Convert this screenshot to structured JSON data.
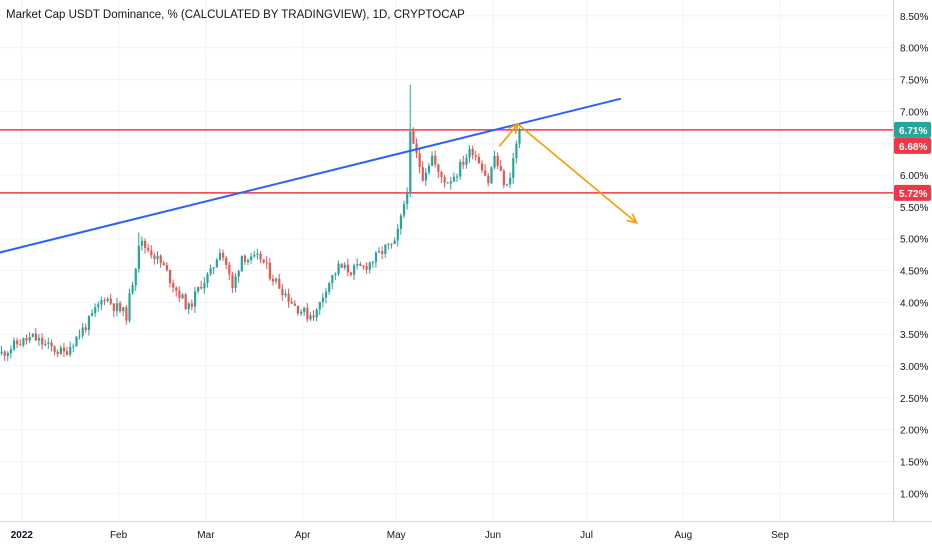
{
  "chart_data": {
    "type": "candlestick",
    "title": "Market Cap USDT Dominance, % (CALCULATED BY TRADINGVIEW), 1D, CRYPTOCAP",
    "ylim": [
      0.55,
      8.75
    ],
    "y_ticks": [
      "8.50%",
      "8.00%",
      "7.50%",
      "7.00%",
      "6.50%",
      "6.00%",
      "5.50%",
      "5.00%",
      "4.50%",
      "4.00%",
      "3.50%",
      "3.00%",
      "2.50%",
      "2.00%",
      "1.50%",
      "1.00%"
    ],
    "x_ticks": [
      {
        "label": "2022",
        "bold": true,
        "day": 7
      },
      {
        "label": "Feb",
        "bold": false,
        "day": 38
      },
      {
        "label": "Mar",
        "bold": false,
        "day": 66
      },
      {
        "label": "Apr",
        "bold": false,
        "day": 97
      },
      {
        "label": "May",
        "bold": false,
        "day": 127
      },
      {
        "label": "Jun",
        "bold": false,
        "day": 158
      },
      {
        "label": "Jul",
        "bold": false,
        "day": 188
      },
      {
        "label": "Aug",
        "bold": false,
        "day": 219
      },
      {
        "label": "Sep",
        "bold": false,
        "day": 250
      }
    ],
    "grid": true,
    "price_path": [
      [
        0,
        3.2
      ],
      [
        5,
        3.35
      ],
      [
        10,
        3.45
      ],
      [
        15,
        3.3
      ],
      [
        20,
        3.2
      ],
      [
        24,
        3.45
      ],
      [
        28,
        3.7
      ],
      [
        33,
        4.1
      ],
      [
        36,
        3.95
      ],
      [
        40,
        3.8
      ],
      [
        43,
        4.6
      ],
      [
        44,
        4.95
      ],
      [
        48,
        4.8
      ],
      [
        52,
        4.55
      ],
      [
        56,
        4.2
      ],
      [
        60,
        3.9
      ],
      [
        64,
        4.3
      ],
      [
        67,
        4.45
      ],
      [
        70,
        4.85
      ],
      [
        72,
        4.6
      ],
      [
        74,
        4.2
      ],
      [
        77,
        4.75
      ],
      [
        80,
        4.65
      ],
      [
        83,
        4.7
      ],
      [
        86,
        4.45
      ],
      [
        90,
        4.2
      ],
      [
        94,
        3.95
      ],
      [
        98,
        3.8
      ],
      [
        101,
        3.85
      ],
      [
        104,
        4.25
      ],
      [
        108,
        4.55
      ],
      [
        112,
        4.5
      ],
      [
        116,
        4.55
      ],
      [
        120,
        4.7
      ],
      [
        123,
        4.85
      ],
      [
        126,
        4.9
      ],
      [
        128,
        5.3
      ],
      [
        130,
        5.8
      ],
      [
        131,
        6.6
      ],
      [
        133,
        6.3
      ],
      [
        135,
        6.0
      ],
      [
        138,
        6.3
      ],
      [
        140,
        6.0
      ],
      [
        143,
        5.9
      ],
      [
        146,
        6.05
      ],
      [
        149,
        6.3
      ],
      [
        151,
        6.4
      ],
      [
        154,
        6.15
      ],
      [
        156,
        5.9
      ],
      [
        158,
        6.3
      ],
      [
        160,
        6.0
      ],
      [
        162,
        5.8
      ],
      [
        164,
        6.25
      ],
      [
        166,
        6.7
      ]
    ],
    "horizontal_levels": [
      {
        "value": 6.71,
        "label": "6.71%",
        "badge_color": "#26a69a"
      },
      {
        "value": 6.68,
        "label": "6.68%",
        "badge_color": "#f23645"
      },
      {
        "value": 5.72,
        "label": "5.72%",
        "badge_color": "#f23645"
      }
    ],
    "trendline": {
      "color": "#2962ff",
      "points": [
        [
          -7,
          4.7
        ],
        [
          199,
          7.2
        ]
      ]
    },
    "projection": {
      "color": "#ff9800",
      "points": [
        [
          160,
          6.45
        ],
        [
          166,
          6.8
        ],
        [
          204,
          5.25
        ]
      ]
    },
    "colors": {
      "up": "#26a69a",
      "down": "#ef5350",
      "level_line": "#f23645",
      "grid": "#f0f3fa"
    }
  }
}
